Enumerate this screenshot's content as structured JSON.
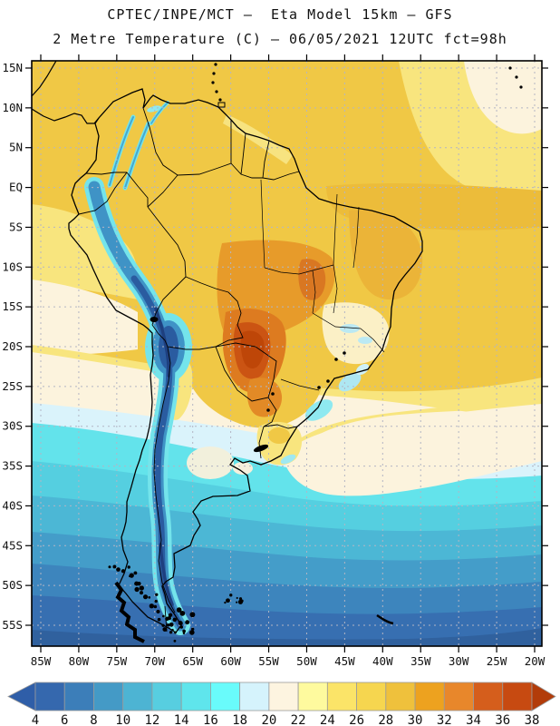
{
  "header": {
    "line1": "CPTEC/INPE/MCT –  Eta Model 15km – GFS",
    "line2": "2 Metre Temperature (C) – 06/05/2021 12UTC fct=98h"
  },
  "map": {
    "lat_labels": [
      "15N",
      "10N",
      "5N",
      "EQ",
      "5S",
      "10S",
      "15S",
      "20S",
      "25S",
      "30S",
      "35S",
      "40S",
      "45S",
      "50S",
      "55S"
    ],
    "lon_labels": [
      "85W",
      "80W",
      "75W",
      "70W",
      "65W",
      "60W",
      "55W",
      "50W",
      "45W",
      "40W",
      "35W",
      "30W",
      "25W",
      "20W"
    ],
    "grid_color": "#b3b5c4",
    "coast_color": "#000000",
    "frame_color": "#000000"
  },
  "colorbar": {
    "units": "C",
    "tick_labels": [
      "4",
      "6",
      "8",
      "10",
      "12",
      "14",
      "16",
      "18",
      "20",
      "22",
      "24",
      "26",
      "28",
      "30",
      "32",
      "34",
      "36",
      "38"
    ],
    "cell_colors": [
      "#3568AE",
      "#3C7EB9",
      "#449AC6",
      "#4DB4D3",
      "#57CEE0",
      "#5FE5EC",
      "#69FBFB",
      "#D5F3FC",
      "#FDF4E0",
      "#FEFA9E",
      "#FBE468",
      "#F6D64F",
      "#EFC13C",
      "#EDA21F",
      "#E8872B",
      "#D55E1C",
      "#C74A11"
    ],
    "arrow_left_color": "#2F5EA8",
    "arrow_right_color": "#B23C0A",
    "border_color": "#9a9a9a"
  },
  "chart_data": {
    "type": "heatmap",
    "source": "CPTEC/INPE/MCT",
    "model": "Eta Model 15km – GFS",
    "title": "2 Metre Temperature (C) – 06/05/2021 12UTC fct=98h",
    "units": "C",
    "scale_min": 4,
    "scale_max": 38,
    "scale_step": 2,
    "lat_range": [
      "15N",
      "55S"
    ],
    "lon_range": [
      "85W",
      "20W"
    ],
    "legend_position": "bottom"
  }
}
